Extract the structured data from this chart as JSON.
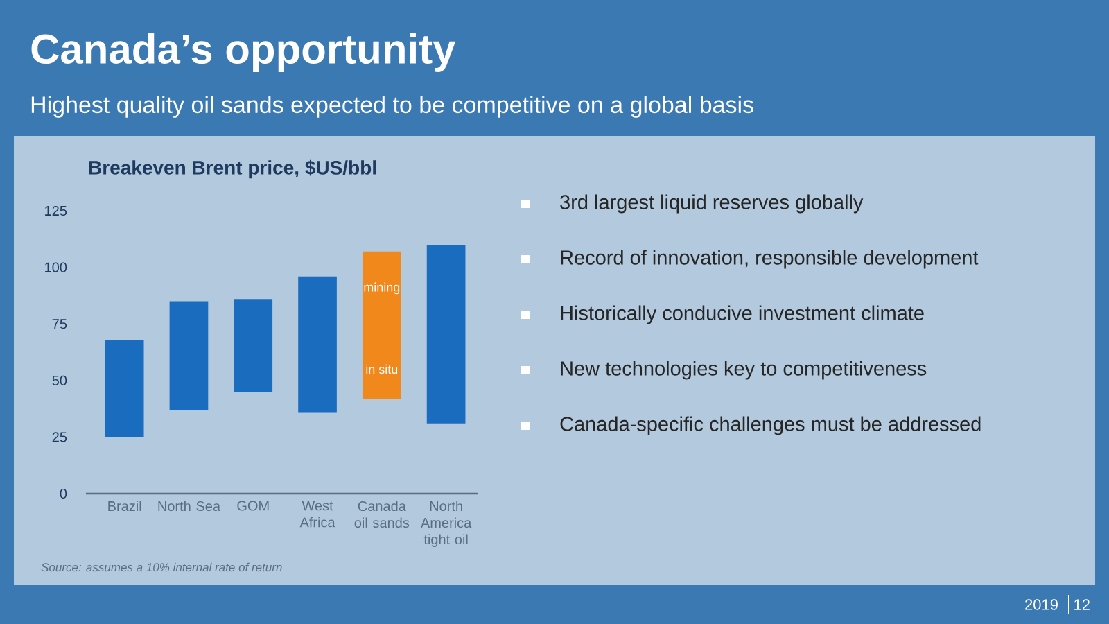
{
  "chart_data": {
    "type": "bar",
    "title": "Canada’s opportunity",
    "subtitle": "Highest quality oil sands expected to be competitive on a global basis",
    "ylabel": "Breakeven Brent price, $US/bbl",
    "categories": [
      "Brazil",
      "North Sea",
      "GOM",
      "West Africa",
      "Canada oil sands",
      "North America tight oil"
    ],
    "base": [
      25,
      37,
      45,
      36,
      42,
      31
    ],
    "values": [
      43,
      48,
      41,
      60,
      65,
      79
    ],
    "colors": [
      "#1a6cbf",
      "#1a6cbf",
      "#1a6cbf",
      "#1a6cbf",
      "#f0881c",
      "#1a6cbf"
    ],
    "ylim": [
      0,
      125
    ],
    "yticks": [
      0,
      25,
      50,
      75,
      100,
      125
    ],
    "annotations": [
      "mining",
      "in situ",
      "Source: assumes a 10% internal rate of return",
      "3rd largest liquid reserves globally",
      "Record of innovation, responsible development",
      "Historically conducive investment climate",
      "New technologies key to competitiveness",
      "Canada-specific challenges must be addressed",
      "2019",
      "12"
    ]
  }
}
